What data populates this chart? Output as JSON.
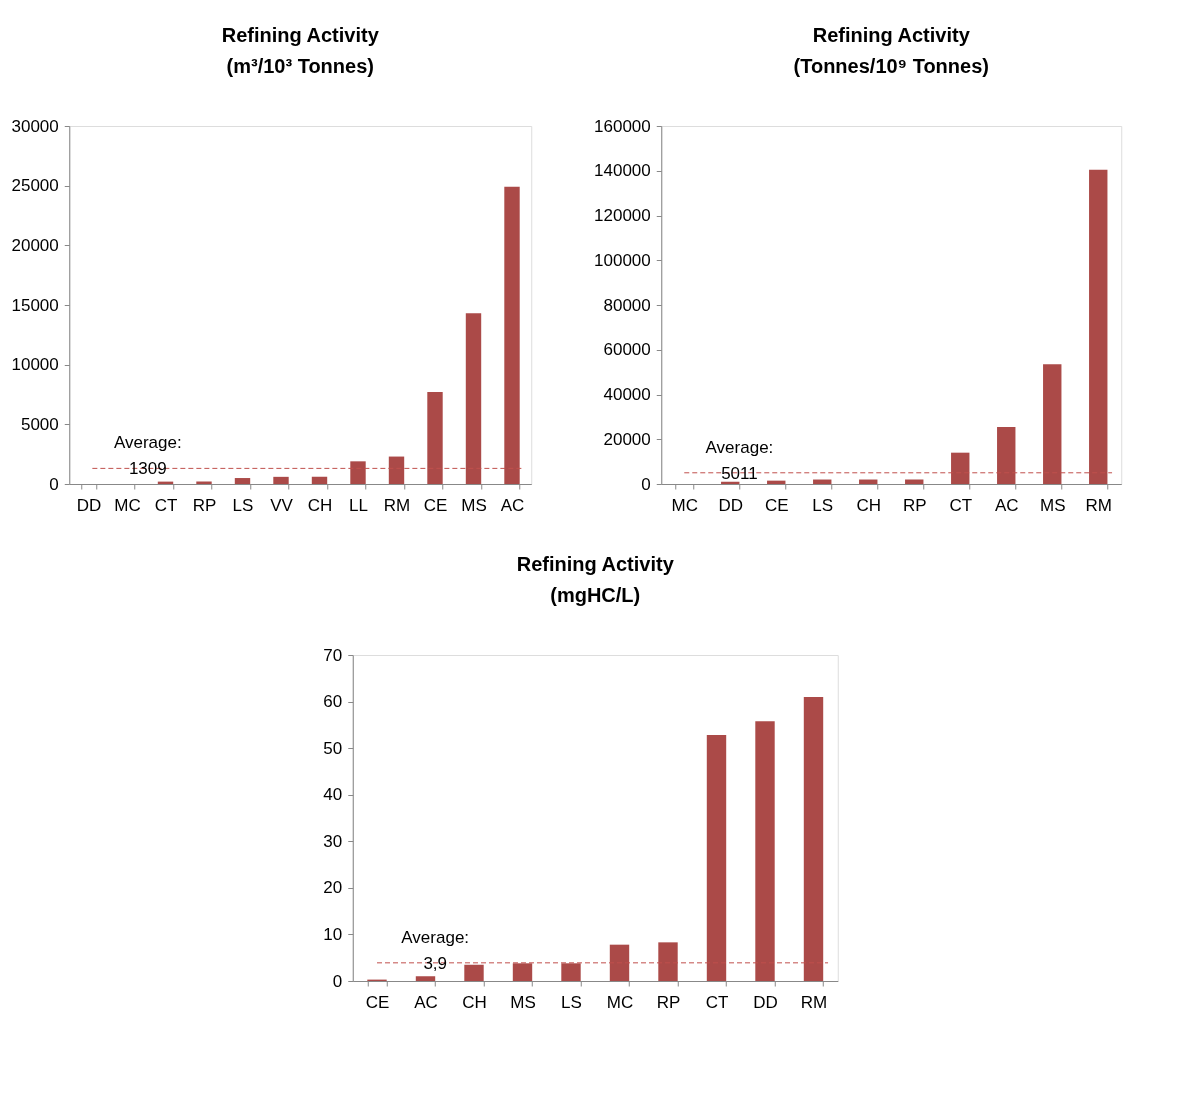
{
  "chart_data": [
    {
      "type": "bar",
      "title": "Refining Activity\n(m³/10³ Tonnes)",
      "categories": [
        "DD",
        "MC",
        "CT",
        "RP",
        "LS",
        "VV",
        "CH",
        "LL",
        "RM",
        "CE",
        "MS",
        "AC"
      ],
      "values": [
        0,
        0,
        200,
        200,
        500,
        600,
        600,
        1900,
        2300,
        7700,
        14300,
        24900
      ],
      "color": "#ab4a48",
      "ylim": [
        0,
        30000
      ],
      "yticks": [
        0,
        5000,
        10000,
        15000,
        20000,
        25000,
        30000
      ],
      "grid": false,
      "ref_lines": [
        {
          "axis": "y",
          "value": 1309,
          "label": "Average:\n1309",
          "color": "#c0504d",
          "line_style": "dashed"
        }
      ]
    },
    {
      "type": "bar",
      "title": "Refining Activity\n(Tonnes/10⁹ Tonnes)",
      "categories": [
        "MC",
        "DD",
        "CE",
        "LS",
        "CH",
        "RP",
        "CT",
        "AC",
        "MS",
        "RM"
      ],
      "values": [
        0,
        1000,
        1500,
        2000,
        2000,
        2000,
        14000,
        25500,
        53500,
        140500
      ],
      "color": "#ab4a48",
      "ylim": [
        0,
        160000
      ],
      "yticks": [
        0,
        20000,
        40000,
        60000,
        80000,
        100000,
        120000,
        140000,
        160000
      ],
      "grid": false,
      "ref_lines": [
        {
          "axis": "y",
          "value": 5011,
          "label": "Average:\n5011",
          "color": "#c0504d",
          "line_style": "dashed"
        }
      ]
    },
    {
      "type": "bar",
      "title": "Refining Activity\n(mgHC/L)",
      "categories": [
        "CE",
        "AC",
        "CH",
        "MS",
        "LS",
        "MC",
        "RP",
        "CT",
        "DD",
        "RM"
      ],
      "values": [
        0.3,
        1,
        3.5,
        3.8,
        3.8,
        7.8,
        8.3,
        52.8,
        55.8,
        61
      ],
      "color": "#ab4a48",
      "ylim": [
        0,
        70
      ],
      "yticks": [
        0,
        10,
        20,
        30,
        40,
        50,
        60,
        70
      ],
      "grid": false,
      "ref_lines": [
        {
          "axis": "y",
          "value": 3.9,
          "label": "Average:\n3,9",
          "color": "#c0504d",
          "line_style": "dashed"
        }
      ]
    }
  ]
}
